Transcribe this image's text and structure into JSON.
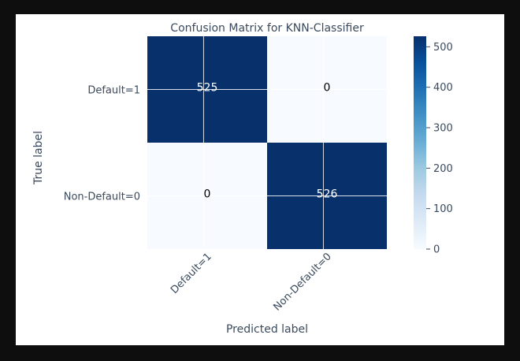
{
  "chart_data": {
    "type": "heatmap",
    "title": "Confusion Matrix for KNN-Classifier",
    "xlabel": "Predicted label",
    "ylabel": "True label",
    "x_categories": [
      "Default=1",
      "Non-Default=0"
    ],
    "y_categories": [
      "Default=1",
      "Non-Default=0"
    ],
    "values": [
      [
        525,
        0
      ],
      [
        0,
        526
      ]
    ],
    "colormap": "Blues",
    "colorbar": {
      "range": [
        0,
        526
      ],
      "ticks": [
        0,
        100,
        200,
        300,
        400,
        500
      ]
    },
    "grid": true,
    "colors": {
      "low": "#f7fbff",
      "high": "#08306b",
      "text_dark_bg": "#ffffff",
      "text_light_bg": "#000000",
      "axis_text": "#3b4a5c"
    }
  }
}
